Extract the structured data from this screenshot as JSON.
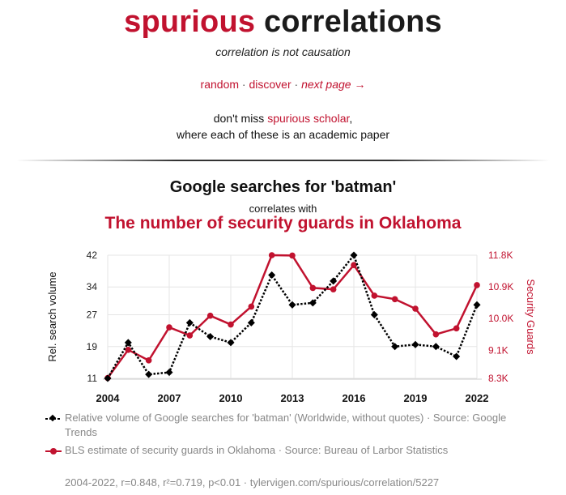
{
  "site": {
    "title_red": "spurious",
    "title_dark": "correlations",
    "tagline": "correlation is not causation"
  },
  "nav": {
    "random": "random",
    "sep1": " · ",
    "discover": "discover",
    "sep2": " · ",
    "next": "next page →"
  },
  "promo": {
    "prefix": "don't miss ",
    "link": "spurious scholar",
    "suffix": ",",
    "line2": "where each of these is an academic paper"
  },
  "chart_header": {
    "title": "Google searches for 'batman'",
    "middle": "correlates with",
    "subtitle": "The number of security guards in Oklahoma"
  },
  "chart_data": {
    "type": "line",
    "x": [
      2004,
      2005,
      2006,
      2007,
      2008,
      2009,
      2010,
      2011,
      2012,
      2013,
      2014,
      2015,
      2016,
      2017,
      2018,
      2019,
      2020,
      2021,
      2022
    ],
    "x_ticks": [
      2004,
      2007,
      2010,
      2013,
      2016,
      2019,
      2022
    ],
    "y_left": {
      "label": "Rel. search volume",
      "range": [
        11,
        42
      ],
      "ticks": [
        11,
        19,
        27,
        34,
        42
      ]
    },
    "y_right": {
      "label": "Security Guards",
      "range": [
        8300,
        11800
      ],
      "ticks": [
        8300,
        9100,
        10000,
        10900,
        11800
      ],
      "tick_labels": [
        "8.3K",
        "9.1K",
        "10.0K",
        "10.9K",
        "11.8K"
      ]
    },
    "series": [
      {
        "name": "Relative volume of Google searches for 'batman' (Worldwide, without quotes) · Source: Google Trends",
        "axis": "left",
        "color": "#000000",
        "style": "dotted",
        "marker": "diamond",
        "values": [
          11,
          20,
          12,
          12.5,
          25,
          21.5,
          20,
          25,
          37,
          29.5,
          30,
          35.5,
          42,
          27,
          19,
          19.5,
          19,
          16.5,
          29.5
        ]
      },
      {
        "name": "BLS estimate of security guards in Oklahoma · Source: Bureau of Larbor Statistics",
        "axis": "right",
        "color": "#c1122f",
        "style": "solid",
        "marker": "circle",
        "values": [
          8310,
          9110,
          8810,
          9750,
          9520,
          10080,
          9830,
          10340,
          11800,
          11790,
          10870,
          10830,
          11520,
          10650,
          10550,
          10280,
          9550,
          9720,
          10950
        ]
      }
    ],
    "grid": true,
    "legend_position": "bottom"
  },
  "footer": "2004-2022, r=0.848, r²=0.719, p<0.01 · tylervigen.com/spurious/correlation/5227",
  "colors": {
    "accent": "#c1122f",
    "text": "#111111",
    "muted": "#888888",
    "grid": "#e6e6e6"
  }
}
